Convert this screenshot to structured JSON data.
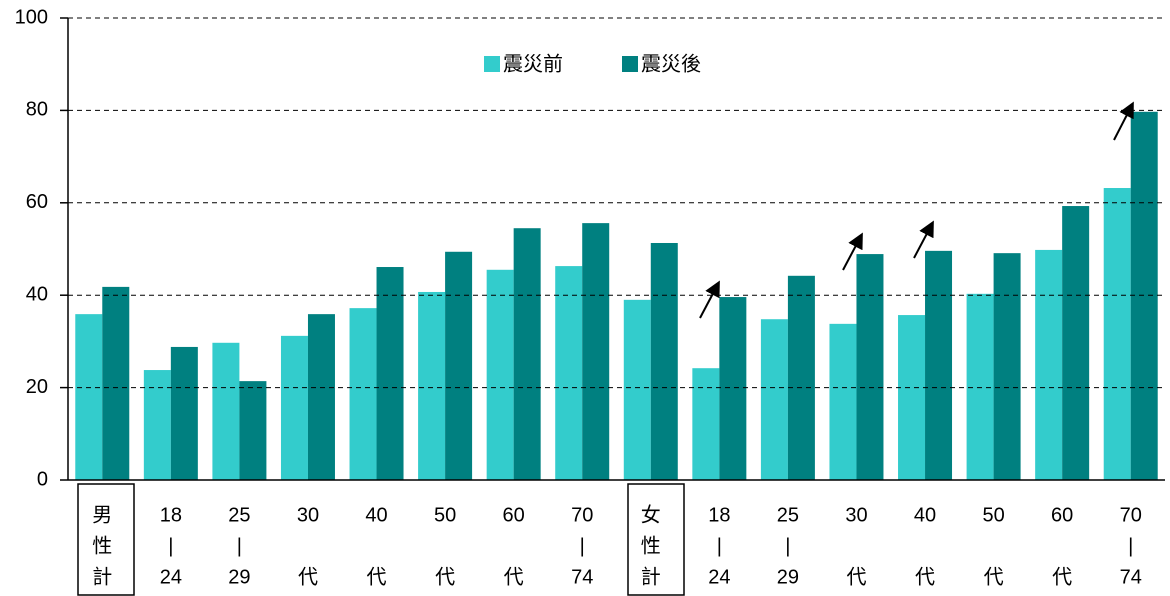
{
  "chart_data": {
    "type": "bar",
    "categories": [
      [
        "男",
        "性",
        "計"
      ],
      [
        "18",
        "|",
        "24"
      ],
      [
        "25",
        "|",
        "29"
      ],
      [
        "30",
        "",
        "代"
      ],
      [
        "40",
        "",
        "代"
      ],
      [
        "50",
        "",
        "代"
      ],
      [
        "60",
        "",
        "代"
      ],
      [
        "70",
        "|",
        "74"
      ],
      [
        "女",
        "性",
        "計"
      ],
      [
        "18",
        "|",
        "24"
      ],
      [
        "25",
        "|",
        "29"
      ],
      [
        "30",
        "",
        "代"
      ],
      [
        "40",
        "",
        "代"
      ],
      [
        "50",
        "",
        "代"
      ],
      [
        "60",
        "",
        "代"
      ],
      [
        "70",
        "|",
        "74"
      ]
    ],
    "series": [
      {
        "name": "震災前",
        "color": "#33cccc",
        "values": [
          35.9,
          23.8,
          29.7,
          31.2,
          37.2,
          40.7,
          45.5,
          46.3,
          39,
          24.2,
          34.8,
          33.8,
          35.7,
          40.3,
          49.8,
          63.2
        ]
      },
      {
        "name": "震災後",
        "color": "#008080",
        "values": [
          41.8,
          28.8,
          21.4,
          35.9,
          46.1,
          49.4,
          54.5,
          55.6,
          51.3,
          39.6,
          44.2,
          48.9,
          49.6,
          49.1,
          59.3,
          79.7
        ]
      }
    ],
    "ylim": [
      0,
      100
    ],
    "yticks": [
      0,
      20,
      40,
      60,
      80,
      100
    ],
    "grid": true
  }
}
